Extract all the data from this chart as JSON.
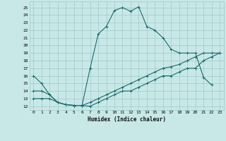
{
  "title": "",
  "xlabel": "Humidex (Indice chaleur)",
  "background_color": "#c8e8e8",
  "grid_color": "#a0c8c8",
  "line_color": "#1a6b6b",
  "x_ticks": [
    0,
    1,
    2,
    3,
    4,
    5,
    6,
    7,
    8,
    9,
    10,
    11,
    12,
    13,
    14,
    15,
    16,
    17,
    18,
    19,
    20,
    21,
    22,
    23
  ],
  "y_ticks": [
    12,
    13,
    14,
    15,
    16,
    17,
    18,
    19,
    20,
    21,
    22,
    23,
    24,
    25
  ],
  "ylim": [
    11.5,
    25.8
  ],
  "xlim": [
    -0.5,
    23.5
  ],
  "series1_y": [
    16,
    15,
    13.5,
    12.5,
    12.2,
    12.1,
    12.1,
    17.0,
    21.5,
    22.5,
    24.6,
    25.0,
    24.5,
    25.1,
    22.5,
    22.0,
    21.0,
    19.5,
    19.0,
    19.0,
    19.0,
    15.8,
    14.8,
    null
  ],
  "series2_y": [
    14.0,
    14.0,
    13.5,
    12.5,
    12.2,
    12.1,
    12.1,
    12.5,
    13.0,
    13.5,
    14.0,
    14.5,
    15.0,
    15.5,
    16.0,
    16.5,
    17.0,
    17.2,
    17.5,
    18.0,
    18.5,
    19.0,
    19.0,
    19.0
  ],
  "series3_y": [
    13.0,
    13.0,
    13.0,
    12.5,
    12.2,
    12.1,
    12.1,
    12.0,
    12.5,
    13.0,
    13.5,
    14.0,
    14.0,
    14.5,
    15.0,
    15.5,
    16.0,
    16.0,
    16.5,
    17.0,
    17.0,
    18.0,
    18.5,
    19.0
  ]
}
